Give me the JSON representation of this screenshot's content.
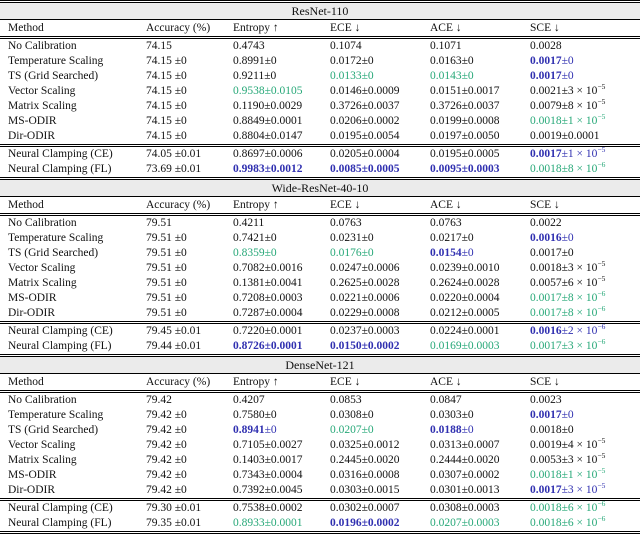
{
  "table": {
    "columns": [
      "Method",
      "Accuracy (%)",
      "Entropy ↑",
      "ECE ↓",
      "ACE ↓",
      "SCE ↓"
    ],
    "colors": {
      "best_blue": "#3030B0",
      "second_green": "#27A878",
      "band_background": "#EBEBEB",
      "rule": "#000000",
      "text": "#111111"
    },
    "group_break_after": 7,
    "sections": [
      {
        "title": "ResNet-110",
        "rows": [
          {
            "method": "No Calibration",
            "accuracy": "74.15",
            "cells": [
              {
                "v": "0.4743"
              },
              {
                "v": "0.1074"
              },
              {
                "v": "0.1071"
              },
              {
                "v": "0.0028"
              }
            ]
          },
          {
            "method": "Temperature Scaling",
            "accuracy": "74.15 ±0",
            "cells": [
              {
                "v": "0.8991",
                "e": "±0"
              },
              {
                "v": "0.0172",
                "e": "±0"
              },
              {
                "v": "0.0163",
                "e": "±0"
              },
              {
                "v": "0.0017",
                "e": "±0",
                "c": "blue",
                "bv": true
              }
            ]
          },
          {
            "method": "TS (Grid Searched)",
            "accuracy": "74.15 ±0",
            "cells": [
              {
                "v": "0.9211",
                "e": "±0"
              },
              {
                "v": "0.0133",
                "e": "±0",
                "c": "green"
              },
              {
                "v": "0.0143",
                "e": "±0",
                "c": "green"
              },
              {
                "v": "0.0017",
                "e": "±0",
                "c": "blue",
                "bv": true
              }
            ]
          },
          {
            "method": "Vector Scaling",
            "accuracy": "74.15 ±0",
            "cells": [
              {
                "v": "0.9538",
                "e": "±0.0105",
                "c": "green"
              },
              {
                "v": "0.0146",
                "e": "±0.0009"
              },
              {
                "v": "0.0151",
                "e": "±0.0017"
              },
              {
                "v": "0.0021",
                "e": "±3 × 10",
                "s": "−5"
              }
            ]
          },
          {
            "method": "Matrix Scaling",
            "accuracy": "74.15 ±0",
            "cells": [
              {
                "v": "0.1190",
                "e": "±0.0029"
              },
              {
                "v": "0.3726",
                "e": "±0.0037"
              },
              {
                "v": "0.3726",
                "e": "±0.0037"
              },
              {
                "v": "0.0079",
                "e": "±8 × 10",
                "s": "−5"
              }
            ]
          },
          {
            "method": "MS-ODIR",
            "accuracy": "74.15 ±0",
            "cells": [
              {
                "v": "0.8849",
                "e": "±0.0001"
              },
              {
                "v": "0.0206",
                "e": "±0.0002"
              },
              {
                "v": "0.0199",
                "e": "±0.0008"
              },
              {
                "v": "0.0018",
                "e": "±1 × 10",
                "s": "−5",
                "c": "green"
              }
            ]
          },
          {
            "method": "Dir-ODIR",
            "accuracy": "74.15 ±0",
            "cells": [
              {
                "v": "0.8804",
                "e": "±0.0147"
              },
              {
                "v": "0.0195",
                "e": "±0.0054"
              },
              {
                "v": "0.0197",
                "e": "±0.0050"
              },
              {
                "v": "0.0019",
                "e": "±0.0001"
              }
            ]
          },
          {
            "method": "Neural Clamping (CE)",
            "accuracy": "74.05 ±0.01",
            "cells": [
              {
                "v": "0.8697",
                "e": "±0.0006"
              },
              {
                "v": "0.0205",
                "e": "±0.0004"
              },
              {
                "v": "0.0195",
                "e": "±0.0005"
              },
              {
                "v": "0.0017",
                "e": "±1 × 10",
                "s": "−5",
                "c": "blue",
                "bv": true
              }
            ]
          },
          {
            "method": "Neural Clamping (FL)",
            "accuracy": "73.69 ±0.01",
            "cells": [
              {
                "v": "0.9983",
                "e": "±0.0012",
                "c": "blue",
                "bv": true,
                "be": true
              },
              {
                "v": "0.0085",
                "e": "±0.0005",
                "c": "blue",
                "bv": true,
                "be": true
              },
              {
                "v": "0.0095",
                "e": "±0.0003",
                "c": "blue",
                "bv": true,
                "be": true
              },
              {
                "v": "0.0018",
                "e": "±8 × 10",
                "s": "−6",
                "c": "green"
              }
            ]
          }
        ]
      },
      {
        "title": "Wide-ResNet-40-10",
        "rows": [
          {
            "method": "No Calibration",
            "accuracy": "79.51",
            "cells": [
              {
                "v": "0.4211"
              },
              {
                "v": "0.0763"
              },
              {
                "v": "0.0763"
              },
              {
                "v": "0.0022"
              }
            ]
          },
          {
            "method": "Temperature Scaling",
            "accuracy": "79.51 ±0",
            "cells": [
              {
                "v": "0.7421",
                "e": "±0"
              },
              {
                "v": "0.0231",
                "e": "±0"
              },
              {
                "v": "0.0217",
                "e": "±0"
              },
              {
                "v": "0.0016",
                "e": "±0",
                "c": "blue",
                "bv": true
              }
            ]
          },
          {
            "method": "TS (Grid Searched)",
            "accuracy": "79.51 ±0",
            "cells": [
              {
                "v": "0.8359",
                "e": "±0",
                "c": "green"
              },
              {
                "v": "0.0176",
                "e": "±0",
                "c": "green"
              },
              {
                "v": "0.0154",
                "e": "±0",
                "c": "blue",
                "bv": true
              },
              {
                "v": "0.0017",
                "e": "±0"
              }
            ]
          },
          {
            "method": "Vector Scaling",
            "accuracy": "79.51 ±0",
            "cells": [
              {
                "v": "0.7082",
                "e": "±0.0016"
              },
              {
                "v": "0.0247",
                "e": "±0.0006"
              },
              {
                "v": "0.0239",
                "e": "±0.0010"
              },
              {
                "v": "0.0018",
                "e": "±3 × 10",
                "s": "−5"
              }
            ]
          },
          {
            "method": "Matrix Scaling",
            "accuracy": "79.51 ±0",
            "cells": [
              {
                "v": "0.1381",
                "e": "±0.0041"
              },
              {
                "v": "0.2625",
                "e": "±0.0028"
              },
              {
                "v": "0.2624",
                "e": "±0.0028"
              },
              {
                "v": "0.0057",
                "e": "±6 × 10",
                "s": "−5"
              }
            ]
          },
          {
            "method": "MS-ODIR",
            "accuracy": "79.51 ±0",
            "cells": [
              {
                "v": "0.7208",
                "e": "±0.0003"
              },
              {
                "v": "0.0221",
                "e": "±0.0006"
              },
              {
                "v": "0.0220",
                "e": "±0.0004"
              },
              {
                "v": "0.0017",
                "e": "±8 × 10",
                "s": "−6",
                "c": "green"
              }
            ]
          },
          {
            "method": "Dir-ODIR",
            "accuracy": "79.51 ±0",
            "cells": [
              {
                "v": "0.7287",
                "e": "±0.0004"
              },
              {
                "v": "0.0229",
                "e": "±0.0008"
              },
              {
                "v": "0.0212",
                "e": "±0.0005"
              },
              {
                "v": "0.0017",
                "e": "±8 × 10",
                "s": "−6",
                "c": "green"
              }
            ]
          },
          {
            "method": "Neural Clamping (CE)",
            "accuracy": "79.45 ±0.01",
            "cells": [
              {
                "v": "0.7220",
                "e": "±0.0001"
              },
              {
                "v": "0.0237",
                "e": "±0.0003"
              },
              {
                "v": "0.0224",
                "e": "±0.0001"
              },
              {
                "v": "0.0016",
                "e": "±2 × 10",
                "s": "−6",
                "c": "blue",
                "bv": true
              }
            ]
          },
          {
            "method": "Neural Clamping (FL)",
            "accuracy": "79.44 ±0.01",
            "cells": [
              {
                "v": "0.8726",
                "e": "±0.0001",
                "c": "blue",
                "bv": true,
                "be": true
              },
              {
                "v": "0.0150",
                "e": "±0.0002",
                "c": "blue",
                "bv": true,
                "be": true
              },
              {
                "v": "0.0169",
                "e": "±0.0003",
                "c": "green"
              },
              {
                "v": "0.0017",
                "e": "±3 × 10",
                "s": "−6",
                "c": "green"
              }
            ]
          }
        ]
      },
      {
        "title": "DenseNet-121",
        "rows": [
          {
            "method": "No Calibration",
            "accuracy": "79.42",
            "cells": [
              {
                "v": "0.4207"
              },
              {
                "v": "0.0853"
              },
              {
                "v": "0.0847"
              },
              {
                "v": "0.0023"
              }
            ]
          },
          {
            "method": "Temperature Scaling",
            "accuracy": "79.42 ±0",
            "cells": [
              {
                "v": "0.7580",
                "e": "±0"
              },
              {
                "v": "0.0308",
                "e": "±0"
              },
              {
                "v": "0.0303",
                "e": "±0"
              },
              {
                "v": "0.0017",
                "e": "±0",
                "c": "blue",
                "bv": true
              }
            ]
          },
          {
            "method": "TS (Grid Searched)",
            "accuracy": "79.42 ±0",
            "cells": [
              {
                "v": "0.8941",
                "e": "±0",
                "c": "blue",
                "bv": true
              },
              {
                "v": "0.0207",
                "e": "±0",
                "c": "green"
              },
              {
                "v": "0.0188",
                "e": "±0",
                "c": "blue",
                "bv": true
              },
              {
                "v": "0.0018",
                "e": "±0"
              }
            ]
          },
          {
            "method": "Vector Scaling",
            "accuracy": "79.42 ±0",
            "cells": [
              {
                "v": "0.7105",
                "e": "±0.0027"
              },
              {
                "v": "0.0325",
                "e": "±0.0012"
              },
              {
                "v": "0.0313",
                "e": "±0.0007"
              },
              {
                "v": "0.0019",
                "e": "±4 × 10",
                "s": "−5"
              }
            ]
          },
          {
            "method": "Matrix Scaling",
            "accuracy": "79.42 ±0",
            "cells": [
              {
                "v": "0.1403",
                "e": "±0.0017"
              },
              {
                "v": "0.2445",
                "e": "±0.0020"
              },
              {
                "v": "0.2444",
                "e": "±0.0020"
              },
              {
                "v": "0.0053",
                "e": "±3 × 10",
                "s": "−5"
              }
            ]
          },
          {
            "method": "MS-ODIR",
            "accuracy": "79.42 ±0",
            "cells": [
              {
                "v": "0.7343",
                "e": "±0.0004"
              },
              {
                "v": "0.0316",
                "e": "±0.0008"
              },
              {
                "v": "0.0307",
                "e": "±0.0002"
              },
              {
                "v": "0.0018",
                "e": "±1 × 10",
                "s": "−5",
                "c": "green"
              }
            ]
          },
          {
            "method": "Dir-ODIR",
            "accuracy": "79.42 ±0",
            "cells": [
              {
                "v": "0.7392",
                "e": "±0.0045"
              },
              {
                "v": "0.0303",
                "e": "±0.0015"
              },
              {
                "v": "0.0301",
                "e": "±0.0013"
              },
              {
                "v": "0.0017",
                "e": "±3 × 10",
                "s": "−5",
                "c": "blue",
                "bv": true
              }
            ]
          },
          {
            "method": "Neural Clamping (CE)",
            "accuracy": "79.30 ±0.01",
            "cells": [
              {
                "v": "0.7538",
                "e": "±0.0002"
              },
              {
                "v": "0.0302",
                "e": "±0.0007"
              },
              {
                "v": "0.0308",
                "e": "±0.0003"
              },
              {
                "v": "0.0018",
                "e": "±6 × 10",
                "s": "−6",
                "c": "green"
              }
            ]
          },
          {
            "method": "Neural Clamping (FL)",
            "accuracy": "79.35 ±0.01",
            "cells": [
              {
                "v": "0.8933",
                "e": "±0.0001",
                "c": "green"
              },
              {
                "v": "0.0196",
                "e": "±0.0002",
                "c": "blue",
                "bv": true,
                "be": true
              },
              {
                "v": "0.0207",
                "e": "±0.0003",
                "c": "green"
              },
              {
                "v": "0.0018",
                "e": "±6 × 10",
                "s": "−6",
                "c": "green"
              }
            ]
          }
        ]
      }
    ]
  }
}
